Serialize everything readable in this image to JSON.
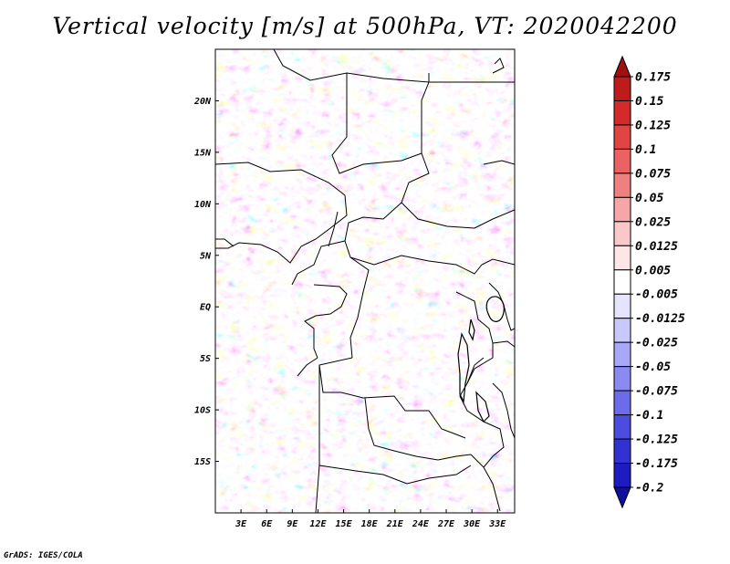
{
  "title": "Vertical velocity [m/s] at 500hPa, VT: 2020042200",
  "credit": "GrADS: IGES/COLA",
  "map": {
    "lon_range": [
      0,
      35
    ],
    "lat_range": [
      -20,
      25
    ],
    "field_colors": {
      "ascent": "#e0201e",
      "descent": "#3a38d6",
      "neutral": "#ffffff"
    }
  },
  "lat_labels": [
    "20N",
    "15N",
    "10N",
    "5N",
    "EQ",
    "5S",
    "10S",
    "15S"
  ],
  "lat_values": [
    20,
    15,
    10,
    5,
    0,
    -5,
    -10,
    -15
  ],
  "lon_labels": [
    "3E",
    "6E",
    "9E",
    "12E",
    "15E",
    "18E",
    "21E",
    "24E",
    "27E",
    "30E",
    "33E"
  ],
  "lon_values": [
    3,
    6,
    9,
    12,
    15,
    18,
    21,
    24,
    27,
    30,
    33
  ],
  "colorbar": {
    "labels": [
      "0.175",
      "0.15",
      "0.125",
      "0.1",
      "0.075",
      "0.05",
      "0.025",
      "0.0125",
      "0.005",
      "-0.005",
      "-0.0125",
      "-0.025",
      "-0.05",
      "-0.075",
      "-0.1",
      "-0.125",
      "-0.175",
      "-0.2"
    ],
    "colors": [
      "#a01010",
      "#be1c1c",
      "#d42a2a",
      "#e24444",
      "#ea6262",
      "#f08080",
      "#f6a6a6",
      "#fac8c8",
      "#fde6e6",
      "#ffffff",
      "#e4e4fe",
      "#c8c8fc",
      "#a8a8f8",
      "#8a8af2",
      "#6c6cea",
      "#4c4ce0",
      "#3232d2",
      "#1c1cc0",
      "#1010a0"
    ]
  }
}
